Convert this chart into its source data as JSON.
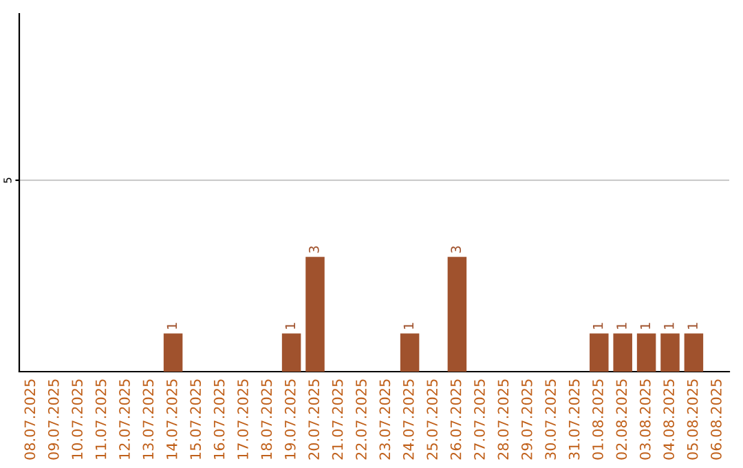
{
  "chart_data": {
    "type": "bar",
    "categories": [
      "08.07.2025",
      "09.07.2025",
      "10.07.2025",
      "11.07.2025",
      "12.07.2025",
      "13.07.2025",
      "14.07.2025",
      "15.07.2025",
      "16.07.2025",
      "17.07.2025",
      "18.07.2025",
      "19.07.2025",
      "20.07.2025",
      "21.07.2025",
      "22.07.2025",
      "23.07.2025",
      "24.07.2025",
      "25.07.2025",
      "26.07.2025",
      "27.07.2025",
      "28.07.2025",
      "29.07.2025",
      "30.07.2025",
      "31.07.2025",
      "01.08.2025",
      "02.08.2025",
      "03.08.2025",
      "04.08.2025",
      "05.08.2025",
      "06.08.2025"
    ],
    "values": [
      0,
      0,
      0,
      0,
      0,
      0,
      1,
      0,
      0,
      0,
      0,
      1,
      3,
      0,
      0,
      0,
      1,
      0,
      3,
      0,
      0,
      0,
      0,
      0,
      1,
      1,
      1,
      1,
      1,
      0
    ],
    "color": "#a0522d",
    "ylim": [
      0,
      9.35
    ],
    "yticks": [
      5
    ],
    "grid": "y",
    "value_labels": [
      null,
      null,
      null,
      null,
      null,
      null,
      "1",
      null,
      null,
      null,
      null,
      "1",
      "3",
      null,
      null,
      null,
      "1",
      null,
      "3",
      null,
      null,
      null,
      null,
      null,
      "1",
      "1",
      "1",
      "1",
      "1",
      null
    ]
  }
}
